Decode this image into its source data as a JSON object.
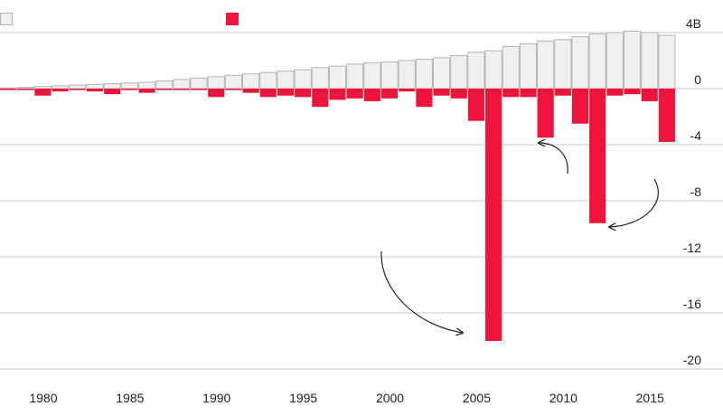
{
  "chart_data": {
    "type": "bar",
    "x": [
      1978,
      1979,
      1980,
      1981,
      1982,
      1983,
      1984,
      1985,
      1986,
      1987,
      1988,
      1989,
      1990,
      1991,
      1992,
      1993,
      1994,
      1995,
      1996,
      1997,
      1998,
      1999,
      2000,
      2001,
      2002,
      2003,
      2004,
      2005,
      2006,
      2007,
      2008,
      2009,
      2010,
      2011,
      2012,
      2013,
      2014,
      2015,
      2016
    ],
    "series": [
      {
        "color": "#f0f0f0",
        "stroke": "#b5b5b5",
        "values": [
          0.05,
          0.1,
          0.15,
          0.2,
          0.25,
          0.3,
          0.35,
          0.4,
          0.45,
          0.55,
          0.65,
          0.75,
          0.85,
          0.95,
          1.05,
          1.15,
          1.25,
          1.35,
          1.5,
          1.6,
          1.75,
          1.85,
          1.9,
          2.0,
          2.1,
          2.2,
          2.35,
          2.6,
          2.7,
          3.0,
          3.2,
          3.4,
          3.5,
          3.7,
          3.9,
          4.0,
          4.1,
          4.0,
          3.8
        ]
      },
      {
        "color": "#f0143c",
        "values": [
          -0.1,
          -0.1,
          -0.5,
          -0.2,
          -0.1,
          -0.2,
          -0.4,
          -0.1,
          -0.3,
          -0.1,
          -0.1,
          -0.1,
          -0.6,
          -0.1,
          -0.3,
          -0.6,
          -0.5,
          -0.6,
          -1.3,
          -0.8,
          -0.7,
          -0.9,
          -0.7,
          -0.2,
          -1.3,
          -0.5,
          -0.7,
          -2.3,
          -18.0,
          -0.6,
          -0.6,
          -3.5,
          -0.5,
          -2.5,
          -9.6,
          -0.5,
          -0.4,
          -0.9,
          -3.8
        ]
      }
    ],
    "xticks": [
      "1980",
      "1985",
      "1990",
      "1995",
      "2000",
      "2005",
      "2010",
      "2015"
    ],
    "yticks": [
      "4B",
      "0",
      "-4",
      "-8",
      "-12",
      "-16",
      "-20"
    ],
    "ylim": [
      -20,
      4
    ],
    "grid": true,
    "legend": "top-left",
    "annotations": [
      {
        "type": "arrow",
        "target_year": 2005
      },
      {
        "type": "arrow",
        "target_year": 2008
      },
      {
        "type": "arrow",
        "target_year": 2012
      }
    ]
  }
}
